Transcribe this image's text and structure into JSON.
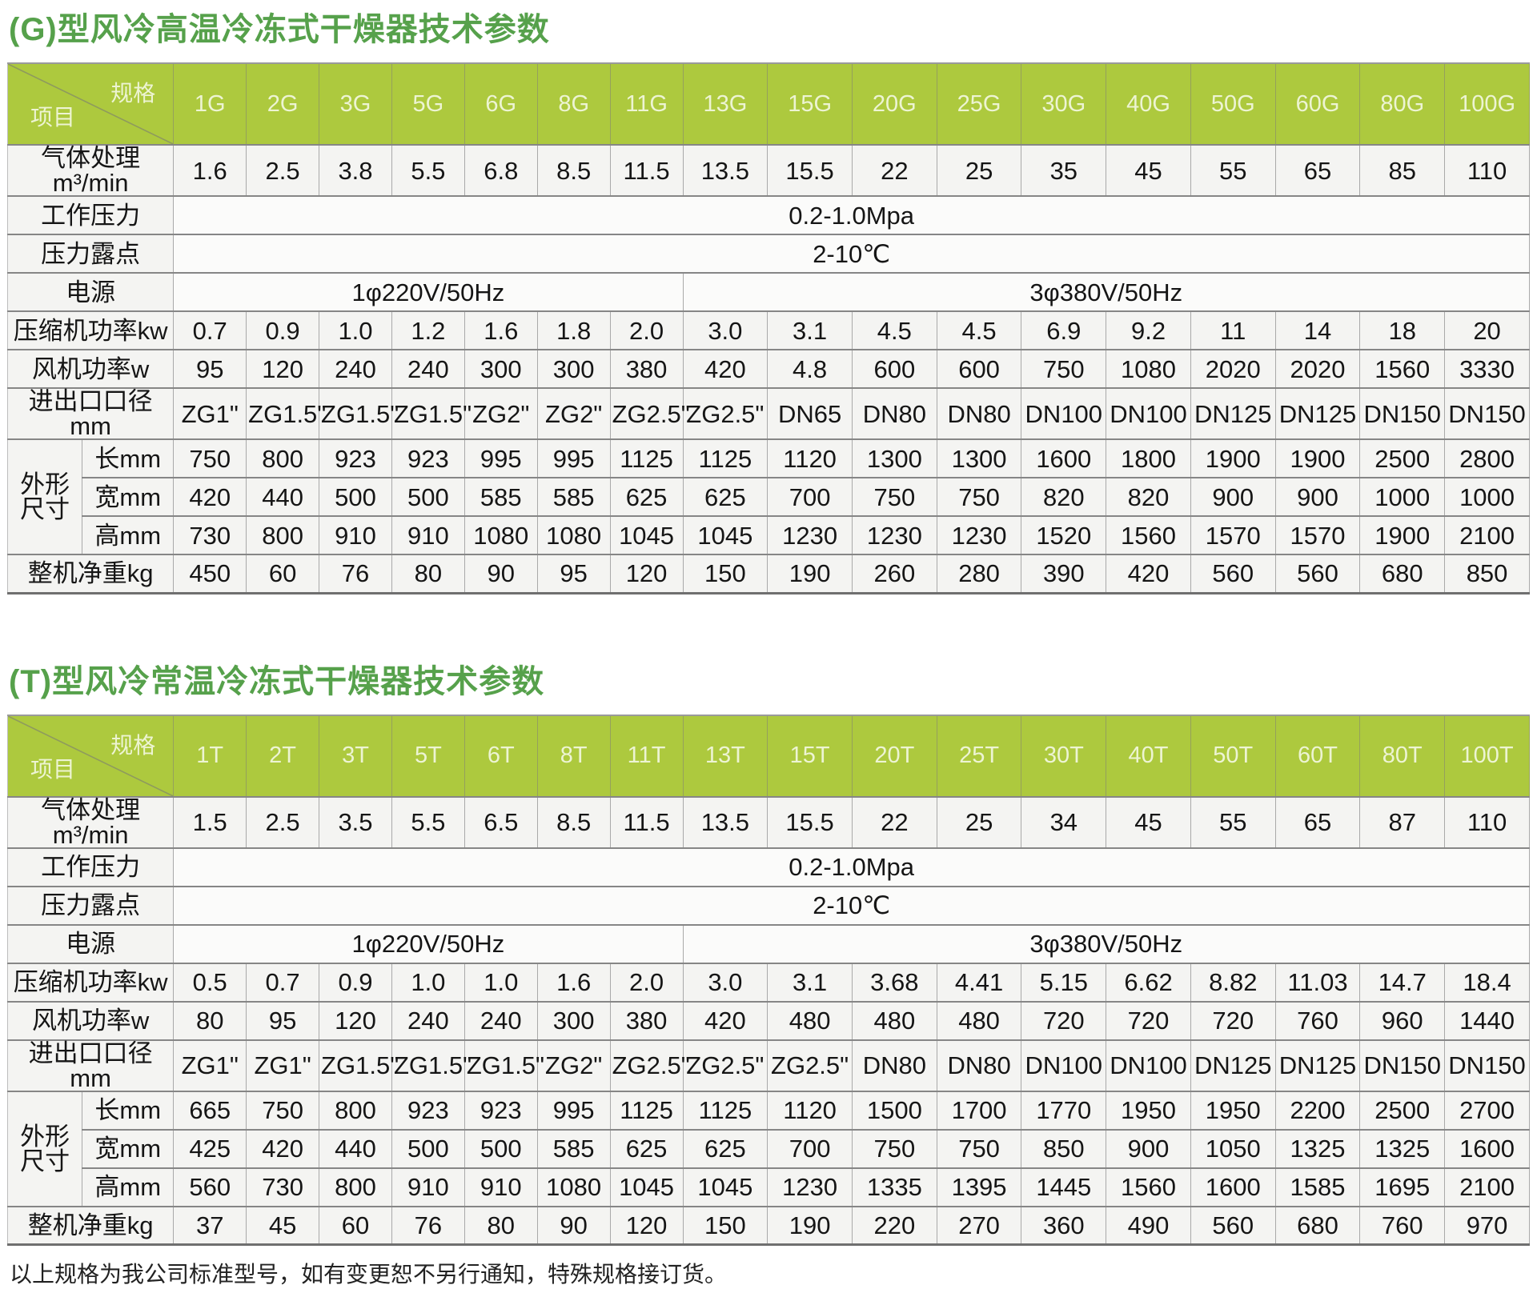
{
  "page": {
    "footer_note": "以上规格为我公司标准型号，如有变更恕不另行通知，特殊规格接订货。"
  },
  "colors": {
    "title_green": "#56a14b",
    "header_green": "#adc93e",
    "header_text": "#edf4d3",
    "cell_bg": "#f4f4f2",
    "grid_dark": "#868686",
    "grid_light": "#a9a9a9"
  },
  "tables": [
    {
      "title": "(G)型风冷高温冷冻式干燥器技术参数",
      "corner": {
        "top_right": "规格",
        "bottom_left": "项目"
      },
      "columns": [
        "1G",
        "2G",
        "3G",
        "5G",
        "6G",
        "8G",
        "11G",
        "13G",
        "15G",
        "20G",
        "25G",
        "30G",
        "40G",
        "50G",
        "60G",
        "80G",
        "100G"
      ],
      "rows": [
        {
          "label": "气体处理m³/min",
          "type": "values",
          "values": [
            "1.6",
            "2.5",
            "3.8",
            "5.5",
            "6.8",
            "8.5",
            "11.5",
            "13.5",
            "15.5",
            "22",
            "25",
            "35",
            "45",
            "55",
            "65",
            "85",
            "110"
          ]
        },
        {
          "label": "工作压力",
          "type": "merged",
          "value": "0.2-1.0Mpa"
        },
        {
          "label": "压力露点",
          "type": "merged",
          "value": "2-10℃"
        },
        {
          "label": "电源",
          "type": "split",
          "cells": [
            {
              "span": 7,
              "value": "1φ220V/50Hz"
            },
            {
              "span": 10,
              "value": "3φ380V/50Hz"
            }
          ]
        },
        {
          "label": "压缩机功率kw",
          "type": "values",
          "values": [
            "0.7",
            "0.9",
            "1.0",
            "1.2",
            "1.6",
            "1.8",
            "2.0",
            "3.0",
            "3.1",
            "4.5",
            "4.5",
            "6.9",
            "9.2",
            "11",
            "14",
            "18",
            "20"
          ]
        },
        {
          "label": "风机功率w",
          "type": "values",
          "values": [
            "95",
            "120",
            "240",
            "240",
            "300",
            "300",
            "380",
            "420",
            "4.8",
            "600",
            "600",
            "750",
            "1080",
            "2020",
            "2020",
            "1560",
            "3330"
          ]
        },
        {
          "label": "进出口口径mm",
          "type": "values",
          "values": [
            "ZG1\"",
            "ZG1.5\"",
            "ZG1.5\"",
            "ZG1.5\"",
            "ZG2\"",
            "ZG2\"",
            "ZG2.5\"",
            "ZG2.5\"",
            "DN65",
            "DN80",
            "DN80",
            "DN100",
            "DN100",
            "DN125",
            "DN125",
            "DN150",
            "DN150"
          ]
        },
        {
          "label": "长mm",
          "type": "values",
          "sub": true,
          "group": {
            "label": "外形尺寸",
            "span": 3
          },
          "values": [
            "750",
            "800",
            "923",
            "923",
            "995",
            "995",
            "1125",
            "1125",
            "1120",
            "1300",
            "1300",
            "1600",
            "1800",
            "1900",
            "1900",
            "2500",
            "2800"
          ]
        },
        {
          "label": "宽mm",
          "type": "values",
          "sub": true,
          "values": [
            "420",
            "440",
            "500",
            "500",
            "585",
            "585",
            "625",
            "625",
            "700",
            "750",
            "750",
            "820",
            "820",
            "900",
            "900",
            "1000",
            "1000"
          ]
        },
        {
          "label": "高mm",
          "type": "values",
          "sub": true,
          "values": [
            "730",
            "800",
            "910",
            "910",
            "1080",
            "1080",
            "1045",
            "1045",
            "1230",
            "1230",
            "1230",
            "1520",
            "1560",
            "1570",
            "1570",
            "1900",
            "2100"
          ]
        },
        {
          "label": "整机净重kg",
          "type": "values",
          "values": [
            "450",
            "60",
            "76",
            "80",
            "90",
            "95",
            "120",
            "150",
            "190",
            "260",
            "280",
            "390",
            "420",
            "560",
            "560",
            "680",
            "850"
          ]
        }
      ]
    },
    {
      "title": "(T)型风冷常温冷冻式干燥器技术参数",
      "corner": {
        "top_right": "规格",
        "bottom_left": "项目"
      },
      "columns": [
        "1T",
        "2T",
        "3T",
        "5T",
        "6T",
        "8T",
        "11T",
        "13T",
        "15T",
        "20T",
        "25T",
        "30T",
        "40T",
        "50T",
        "60T",
        "80T",
        "100T"
      ],
      "rows": [
        {
          "label": "气体处理m³/min",
          "type": "values",
          "values": [
            "1.5",
            "2.5",
            "3.5",
            "5.5",
            "6.5",
            "8.5",
            "11.5",
            "13.5",
            "15.5",
            "22",
            "25",
            "34",
            "45",
            "55",
            "65",
            "87",
            "110"
          ]
        },
        {
          "label": "工作压力",
          "type": "merged",
          "value": "0.2-1.0Mpa"
        },
        {
          "label": "压力露点",
          "type": "merged",
          "value": "2-10℃"
        },
        {
          "label": "电源",
          "type": "split",
          "cells": [
            {
              "span": 7,
              "value": "1φ220V/50Hz"
            },
            {
              "span": 10,
              "value": "3φ380V/50Hz"
            }
          ]
        },
        {
          "label": "压缩机功率kw",
          "type": "values",
          "values": [
            "0.5",
            "0.7",
            "0.9",
            "1.0",
            "1.0",
            "1.6",
            "2.0",
            "3.0",
            "3.1",
            "3.68",
            "4.41",
            "5.15",
            "6.62",
            "8.82",
            "11.03",
            "14.7",
            "18.4"
          ]
        },
        {
          "label": "风机功率w",
          "type": "values",
          "values": [
            "80",
            "95",
            "120",
            "240",
            "240",
            "300",
            "380",
            "420",
            "480",
            "480",
            "480",
            "720",
            "720",
            "720",
            "760",
            "960",
            "1440"
          ]
        },
        {
          "label": "进出口口径mm",
          "type": "values",
          "values": [
            "ZG1\"",
            "ZG1\"",
            "ZG1.5\"",
            "ZG1.5\"",
            "ZG1.5\"",
            "ZG2\"",
            "ZG2.5\"",
            "ZG2.5\"",
            "ZG2.5\"",
            "DN80",
            "DN80",
            "DN100",
            "DN100",
            "DN125",
            "DN125",
            "DN150",
            "DN150"
          ]
        },
        {
          "label": "长mm",
          "type": "values",
          "sub": true,
          "group": {
            "label": "外形尺寸",
            "span": 3
          },
          "values": [
            "665",
            "750",
            "800",
            "923",
            "923",
            "995",
            "1125",
            "1125",
            "1120",
            "1500",
            "1700",
            "1770",
            "1950",
            "1950",
            "2200",
            "2500",
            "2700"
          ]
        },
        {
          "label": "宽mm",
          "type": "values",
          "sub": true,
          "values": [
            "425",
            "420",
            "440",
            "500",
            "500",
            "585",
            "625",
            "625",
            "700",
            "750",
            "750",
            "850",
            "900",
            "1050",
            "1325",
            "1325",
            "1600"
          ]
        },
        {
          "label": "高mm",
          "type": "values",
          "sub": true,
          "values": [
            "560",
            "730",
            "800",
            "910",
            "910",
            "1080",
            "1045",
            "1045",
            "1230",
            "1335",
            "1395",
            "1445",
            "1560",
            "1600",
            "1585",
            "1695",
            "2100"
          ]
        },
        {
          "label": "整机净重kg",
          "type": "values",
          "values": [
            "37",
            "45",
            "60",
            "76",
            "80",
            "90",
            "120",
            "150",
            "190",
            "220",
            "270",
            "360",
            "490",
            "560",
            "680",
            "760",
            "970"
          ]
        }
      ]
    }
  ]
}
